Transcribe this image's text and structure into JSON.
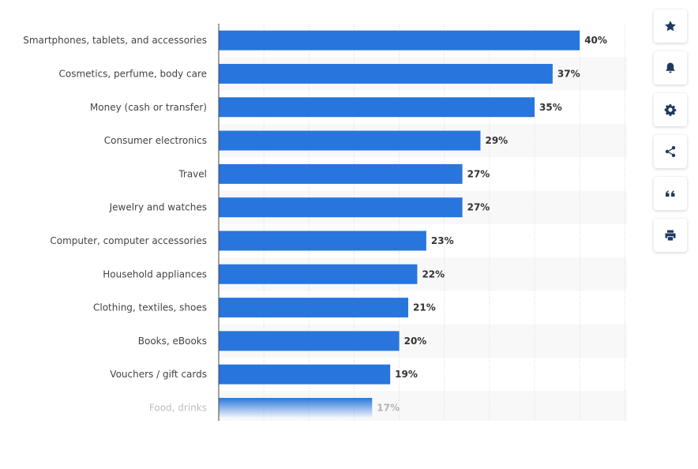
{
  "chart_data": {
    "type": "bar",
    "orientation": "horizontal",
    "categories": [
      "Smartphones, tablets, and accessories",
      "Cosmetics, perfume, body care",
      "Money (cash or transfer)",
      "Consumer electronics",
      "Travel",
      "Jewelry and watches",
      "Computer, computer accessories",
      "Household appliances",
      "Clothing, textiles, shoes",
      "Books, eBooks",
      "Vouchers / gift cards",
      "Food, drinks"
    ],
    "values": [
      40,
      37,
      35,
      29,
      27,
      27,
      23,
      22,
      21,
      20,
      19,
      17
    ],
    "value_labels": [
      "40%",
      "37%",
      "35%",
      "29%",
      "27%",
      "27%",
      "23%",
      "22%",
      "21%",
      "20%",
      "19%",
      "17%"
    ],
    "xlim": [
      0,
      45
    ],
    "grid": true,
    "bar_color": "#2876dd",
    "last_bar_faded": true
  },
  "toolbar": {
    "buttons": [
      {
        "name": "favorite-button",
        "icon": "star-icon"
      },
      {
        "name": "notification-button",
        "icon": "bell-icon"
      },
      {
        "name": "settings-button",
        "icon": "gear-icon"
      },
      {
        "name": "share-button",
        "icon": "share-icon"
      },
      {
        "name": "cite-button",
        "icon": "quote-icon"
      },
      {
        "name": "print-button",
        "icon": "printer-icon"
      }
    ]
  }
}
